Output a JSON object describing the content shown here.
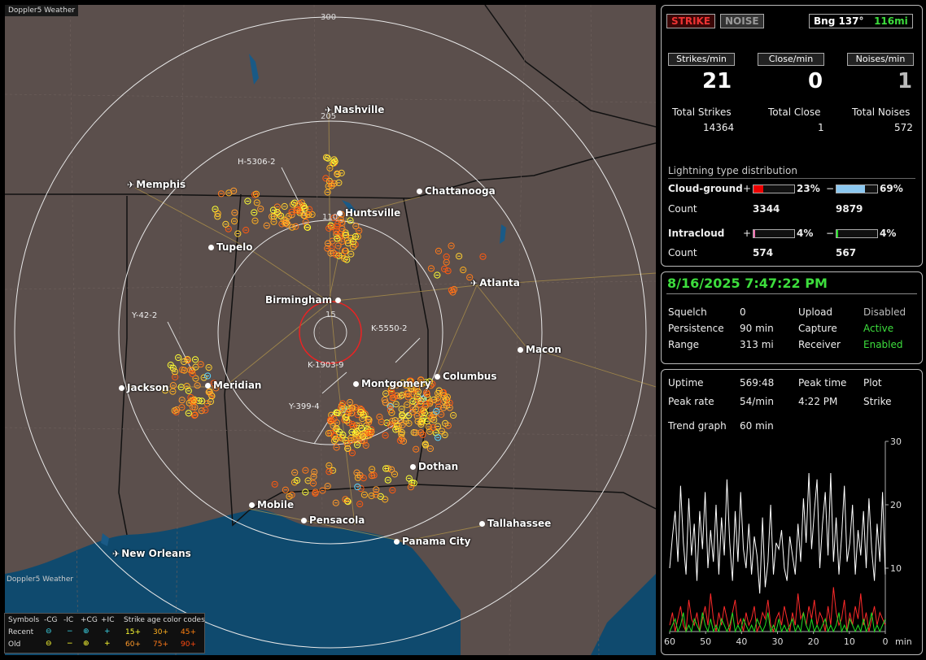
{
  "app": {
    "title": "Doppler5 Weather",
    "credit": "Doppler5 Weather"
  },
  "map": {
    "range_rings": [
      "300",
      "205",
      "110",
      "15"
    ],
    "cities": [
      {
        "name": "Nashville",
        "kind": "airport"
      },
      {
        "name": "Memphis",
        "kind": "airport"
      },
      {
        "name": "Chattanooga",
        "kind": "city"
      },
      {
        "name": "Huntsville",
        "kind": "city"
      },
      {
        "name": "Tupelo",
        "kind": "city"
      },
      {
        "name": "Atlanta",
        "kind": "airport"
      },
      {
        "name": "Birmingham",
        "kind": "city"
      },
      {
        "name": "Macon",
        "kind": "city"
      },
      {
        "name": "Jackson",
        "kind": "city"
      },
      {
        "name": "Meridian",
        "kind": "city"
      },
      {
        "name": "Columbus",
        "kind": "city"
      },
      {
        "name": "Montgomery",
        "kind": "city"
      },
      {
        "name": "Dothan",
        "kind": "city"
      },
      {
        "name": "Mobile",
        "kind": "city"
      },
      {
        "name": "Pensacola",
        "kind": "city"
      },
      {
        "name": "Tallahassee",
        "kind": "city"
      },
      {
        "name": "Panama City",
        "kind": "city"
      },
      {
        "name": "New Orleans",
        "kind": "airport"
      }
    ],
    "storm_tracks": [
      "H-5306-2",
      "Y-42-2",
      "K-5550-2",
      "K-1903-9",
      "Y-399-4"
    ]
  },
  "legend": {
    "symbols_label": "Symbols",
    "cols": [
      "-CG",
      "-IC",
      "+CG",
      "+IC"
    ],
    "recent_label": "Recent",
    "old_label": "Old",
    "age_label": "Strike age color codes",
    "recent_ages": [
      "15+",
      "30+",
      "45+"
    ],
    "old_ages": [
      "60+",
      "75+",
      "90+"
    ],
    "recent_age_colors": [
      "#ffff33",
      "#ffb020",
      "#ff8010"
    ],
    "old_age_colors": [
      "#ff9a2a",
      "#ff7a1a",
      "#ff4a10"
    ]
  },
  "panel": {
    "strike_btn": "STRIKE",
    "noise_btn": "NOISE",
    "bearing": "Bng 137°",
    "distance": "116mi",
    "strikes_min_label": "Strikes/min",
    "close_min_label": "Close/min",
    "noises_min_label": "Noises/min",
    "strikes_min": "21",
    "close_min": "0",
    "noises_min": "1",
    "total_strikes_label": "Total Strikes",
    "total_close_label": "Total Close",
    "total_noises_label": "Total Noises",
    "total_strikes": "14364",
    "total_close": "1",
    "total_noises": "572",
    "dist_title": "Lightning type distribution",
    "cg_label": "Cloud-ground",
    "ic_label": "Intracloud",
    "count_label": "Count",
    "plus": "+",
    "minus": "−",
    "cg_pos_pct": "23%",
    "cg_neg_pct": "69%",
    "ic_pos_pct": "4%",
    "ic_neg_pct": "4%",
    "cg_pos_fraction": 0.23,
    "cg_neg_fraction": 0.69,
    "ic_pos_fraction": 0.04,
    "ic_neg_fraction": 0.04,
    "cg_pos_count": "3344",
    "cg_neg_count": "9879",
    "ic_pos_count": "574",
    "ic_neg_count": "567"
  },
  "status": {
    "datetime": "8/16/2025 7:47:22 PM",
    "squelch_label": "Squelch",
    "squelch": "0",
    "upload_label": "Upload",
    "upload": "Disabled",
    "persistence_label": "Persistence",
    "persistence": "90 min",
    "capture_label": "Capture",
    "capture": "Active",
    "range_label": "Range",
    "range": "313 mi",
    "receiver_label": "Receiver",
    "receiver": "Enabled"
  },
  "stats": {
    "uptime_label": "Uptime",
    "uptime": "569:48",
    "peak_time_label": "Peak time",
    "peak_time": "4:22 PM",
    "plot_label": "Plot",
    "plot": "Strike",
    "peak_rate_label": "Peak rate",
    "peak_rate": "54/min",
    "trend_label": "Trend graph",
    "trend": "60 min"
  },
  "chart_data": {
    "type": "line",
    "title": "",
    "xlabel": "min",
    "ylabel": "",
    "x_ticks": [
      "60",
      "50",
      "40",
      "30",
      "20",
      "10",
      "0"
    ],
    "y_ticks": [
      "10",
      "20",
      "30"
    ],
    "xlim": [
      60,
      0
    ],
    "ylim": [
      0,
      30
    ],
    "series": [
      {
        "values": [
          10,
          15,
          19,
          11,
          23,
          14,
          9,
          21,
          12,
          17,
          8,
          19,
          13,
          22,
          10,
          16,
          11,
          20,
          9,
          18,
          12,
          24,
          14,
          8,
          19,
          11,
          22,
          13,
          10,
          17,
          9,
          15,
          12,
          6,
          18,
          7,
          11,
          20,
          9,
          14,
          13,
          16,
          10,
          8,
          15,
          12,
          9,
          17,
          11,
          21,
          14,
          25,
          13,
          19,
          24,
          10,
          17,
          22,
          12,
          25,
          11,
          18,
          9,
          15,
          23,
          11,
          14,
          20,
          9,
          16,
          12,
          19,
          10,
          21,
          13,
          8,
          17,
          11,
          22,
          9
        ],
        "color": "#ffffff"
      },
      {
        "values": [
          1,
          3,
          0,
          2,
          4,
          1,
          0,
          5,
          2,
          1,
          3,
          0,
          2,
          4,
          1,
          6,
          2,
          0,
          3,
          1,
          4,
          2,
          0,
          3,
          5,
          1,
          2,
          0,
          3,
          1,
          2,
          4,
          0,
          1,
          3,
          2,
          5,
          1,
          0,
          2,
          3,
          1,
          4,
          2,
          0,
          3,
          1,
          6,
          2,
          3,
          1,
          4,
          2,
          5,
          1,
          3,
          2,
          0,
          4,
          1,
          7,
          3,
          1,
          2,
          5,
          0,
          3,
          1,
          4,
          2,
          6,
          1,
          3,
          0,
          2,
          4,
          1,
          3,
          2,
          1
        ],
        "color": "#ff2a2a"
      },
      {
        "values": [
          0,
          1,
          2,
          0,
          1,
          3,
          0,
          1,
          0,
          2,
          1,
          0,
          3,
          1,
          0,
          2,
          0,
          1,
          0,
          2,
          1,
          0,
          1,
          3,
          0,
          1,
          0,
          2,
          1,
          0,
          1,
          0,
          2,
          1,
          0,
          1,
          3,
          0,
          1,
          0,
          2,
          0,
          1,
          0,
          1,
          2,
          0,
          1,
          0,
          3,
          1,
          0,
          2,
          0,
          1,
          0,
          1,
          2,
          0,
          1,
          0,
          1,
          3,
          0,
          1,
          0,
          2,
          1,
          0,
          1,
          0,
          2,
          0,
          1,
          3,
          0,
          1,
          0,
          1,
          2
        ],
        "color": "#22dd22"
      }
    ]
  }
}
